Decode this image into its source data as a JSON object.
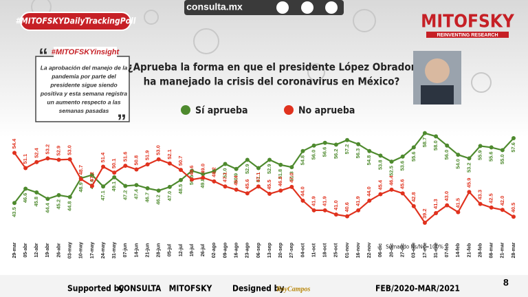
{
  "header": {
    "hashtag": "#MITOFSKYDailyTrackingPoll",
    "site": "consulta.mx",
    "brand": "MITOFSKY",
    "tagline": "REINVENTING RESEARCH"
  },
  "insight": {
    "title": "#MITOFSKYinsight",
    "lines": [
      "La aprobación del manejo de la",
      "pandemia por parte del",
      "presidente  sigue siendo",
      "positiva y esta semana registra",
      "un aumento respecto a las",
      "semanas pasadas"
    ]
  },
  "chart_data": {
    "type": "line",
    "title": [
      "¿Aprueba la forma en que el presidente López Obrador",
      "ha manejado la crisis del coronavirus en México?"
    ],
    "categories": [
      "29-mar",
      "05-abr",
      "12-abr",
      "19-abr",
      "26-abr",
      "03-may",
      "10-may",
      "17-may",
      "24-may",
      "31-may",
      "07-jun",
      "14-jun",
      "21-jun",
      "28-jun",
      "05-jul",
      "12-jul",
      "19-jul",
      "26-jul",
      "02-ago",
      "09-ago",
      "16-ago",
      "23-ago",
      "06-sep",
      "13-sep",
      "20-sep",
      "27-sep",
      "04-oct",
      "11-oct",
      "18-oct",
      "25-oct",
      "01-nov",
      "16-nov",
      "22-nov",
      "06-dic",
      "20-dic",
      "27-dic",
      "03-ene",
      "17-ene",
      "31-ene",
      "07-feb",
      "14-feb",
      "21-feb",
      "28-feb",
      "08-mar",
      "21-mar",
      "28-mar"
    ],
    "ylim": [
      38,
      60
    ],
    "series": [
      {
        "name": "Sí aprueba",
        "color": "#4e8a2e",
        "values": [
          43.5,
          46.6,
          45.8,
          44.4,
          45.2,
          44.8,
          48.9,
          49.6,
          47.1,
          49.1,
          47.2,
          47.4,
          46.7,
          46.2,
          47.0,
          48.5,
          50.5,
          49.8,
          50.4,
          52.0,
          50.9,
          52.9,
          51.1,
          52.9,
          51.8,
          51.3,
          54.8,
          56.0,
          56.6,
          56.2,
          57.2,
          56.3,
          54.8,
          53.8,
          52.5,
          53.6,
          55.6,
          58.7,
          58.0,
          56.0,
          54.0,
          53.2,
          55.9,
          55.6,
          55.0,
          57.6
        ],
        "value_labels": [
          "43.5",
          "46.6",
          "45.8",
          "44.4",
          "45.2",
          "44.8",
          "48.9",
          "49.6",
          "47.1",
          "49.1",
          "47.2",
          "47.4",
          "46.7",
          "46.2",
          "47.0",
          "48.5",
          "50.5",
          "49.8",
          null,
          "52.0",
          "50.9",
          "52.9",
          "51.1",
          "52.9",
          "51.8",
          "51.3",
          "54.8",
          "56.0",
          "56.6",
          "56.2",
          "57.2",
          "56.3",
          "54.8",
          "53.8",
          "52.5",
          "53.6",
          "55.6",
          "58.7",
          "58.0",
          "56.0",
          "54.0",
          "53.2",
          "55.9",
          "55.6",
          "55.0",
          "57.6"
        ]
      },
      {
        "name": "No aprueba",
        "color": "#e0321e",
        "values": [
          54.4,
          51.1,
          52.4,
          53.2,
          52.9,
          53.0,
          48.7,
          47.2,
          51.4,
          50.1,
          51.6,
          50.8,
          51.9,
          53.0,
          52.1,
          50.7,
          48.6,
          49.0,
          48.2,
          47.1,
          46.4,
          45.6,
          47.1,
          45.5,
          46.2,
          47.0,
          44.0,
          41.9,
          41.9,
          41.0,
          40.6,
          41.9,
          44.0,
          45.4,
          46.4,
          45.6,
          42.8,
          39.2,
          41.3,
          43.0,
          41.5,
          45.9,
          43.3,
          42.5,
          42.0,
          40.5
        ],
        "value_labels": [
          "54.4",
          "51.1",
          "52.4",
          "53.2",
          "52.9",
          "53.0",
          "48.7",
          "47.2",
          "51.4",
          "50.1",
          "51.6",
          "50.8",
          "51.9",
          "53.0",
          "52.1",
          "50.7",
          "48.6",
          "49.0",
          "48.2",
          "47.1",
          "46.4",
          "45.6",
          "47.1",
          "45.5",
          "46.2",
          "47.0",
          "44.0",
          "41.9",
          "41.9",
          "41.0",
          "40.6",
          "41.9",
          "44.0",
          "45.4",
          "46.4",
          "45.6",
          "42.8",
          "39.2",
          "41.3",
          "43.0",
          "41.5",
          "45.9",
          "43.3",
          "42.5",
          "42.0",
          "40.5"
        ]
      }
    ],
    "note": "Sumando Ns/Nc=100%"
  },
  "footer": {
    "supported_label": "Supported by",
    "supporters": "CONSULTA   MITOFSKY",
    "designed_label": "Designed by",
    "designer": "RoyCampos",
    "period": "FEB/2020-MAR/2021",
    "page": "8"
  }
}
